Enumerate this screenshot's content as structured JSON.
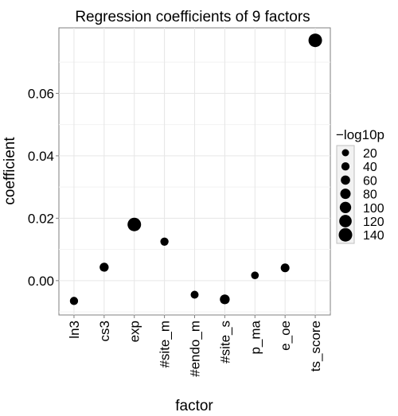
{
  "chart_data": {
    "type": "scatter",
    "title": "Regression coefficients of 9 factors",
    "xlabel": "factor",
    "ylabel": "coefficient",
    "categories": [
      "ln3",
      "cs3",
      "exp",
      "#site_m",
      "#endo_m",
      "#site_s",
      "p_ma",
      "e_oe",
      "ts_score"
    ],
    "values": [
      -0.0065,
      0.0043,
      0.018,
      0.0125,
      -0.0045,
      -0.006,
      0.0017,
      0.0041,
      0.077
    ],
    "size_values": [
      40,
      55,
      140,
      40,
      35,
      70,
      30,
      50,
      140
    ],
    "ylim": [
      -0.011,
      0.081
    ],
    "yticks": [
      0.0,
      0.02,
      0.04,
      0.06
    ],
    "ytick_labels": [
      "0.00",
      "0.02",
      "0.04",
      "0.06"
    ],
    "grid": true,
    "legend": {
      "title": "−log10p",
      "placement": "right",
      "entries": [
        {
          "label": "20",
          "value": 20
        },
        {
          "label": "40",
          "value": 40
        },
        {
          "label": "60",
          "value": 60
        },
        {
          "label": "80",
          "value": 80
        },
        {
          "label": "100",
          "value": 100
        },
        {
          "label": "120",
          "value": 120
        },
        {
          "label": "140",
          "value": 140
        }
      ]
    },
    "colors": {
      "point": "#000000",
      "panel": "#ffffff",
      "grid": "#e6e6e6",
      "border": "#7f7f7f"
    }
  }
}
